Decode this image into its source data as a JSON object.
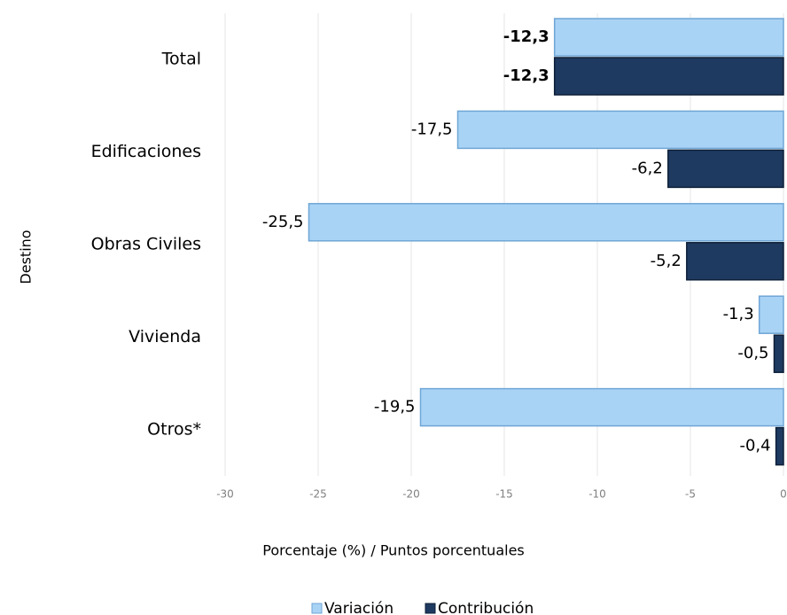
{
  "chart_data": {
    "type": "barh",
    "x_label": "Porcentaje (%) / Puntos porcentuales",
    "y_label": "Destino",
    "categories": [
      "Total",
      "Edificaciones",
      "Obras Civiles",
      "Vivienda",
      "Otros*"
    ],
    "series": [
      {
        "name": "Variación",
        "color": "#a9d3f5",
        "values": [
          -12.3,
          -17.5,
          -25.5,
          -1.3,
          -19.5
        ],
        "value_labels": [
          "-12,3",
          "-17,5",
          "-25,5",
          "-1,3",
          "-19,5"
        ]
      },
      {
        "name": "Contribución",
        "color": "#1f3a60",
        "values": [
          -12.3,
          -6.2,
          -5.2,
          -0.5,
          -0.4
        ],
        "value_labels": [
          "-12,3",
          "-6,2",
          "-5,2",
          "-0,5",
          "-0,4"
        ]
      }
    ],
    "xlim": [
      -30,
      0
    ],
    "xticks": [
      -30,
      -25,
      -20,
      -15,
      -10,
      -5,
      0
    ],
    "grid": true,
    "legend": "bottom"
  }
}
